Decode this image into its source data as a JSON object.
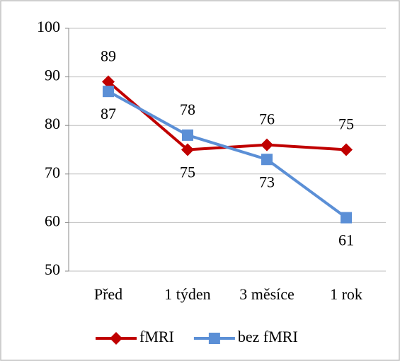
{
  "chart_data": {
    "type": "line",
    "categories": [
      "Před",
      "1 týden",
      "3 měsíce",
      "1 rok"
    ],
    "series": [
      {
        "name": "fMRI",
        "color": "#c00000",
        "marker": "diamond",
        "values": [
          89,
          75,
          76,
          75
        ]
      },
      {
        "name": "bez fMRI",
        "color": "#5b8fd6",
        "marker": "square",
        "values": [
          87,
          78,
          73,
          61
        ]
      }
    ],
    "ylim": [
      50,
      100
    ],
    "yticks": [
      50,
      60,
      70,
      80,
      90,
      100
    ],
    "grid": true,
    "legend": "bottom"
  }
}
